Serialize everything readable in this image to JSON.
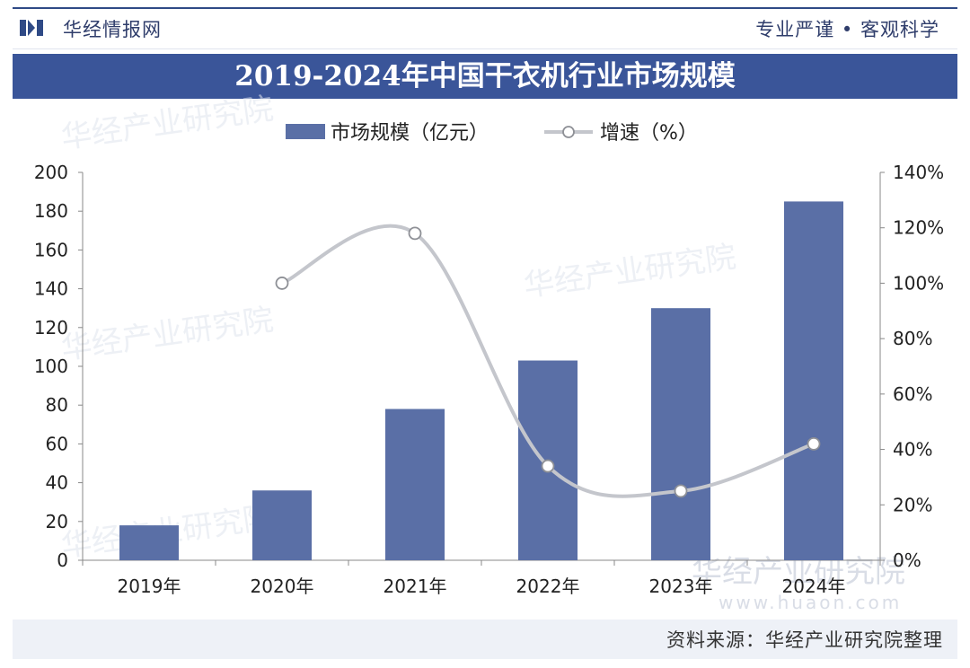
{
  "header": {
    "logo_text": "华经情报网",
    "slogan": "专业严谨 • 客观科学"
  },
  "footer": {
    "source": "资料来源：华经产业研究院整理"
  },
  "watermark": {
    "text": "华经产业研究院",
    "url": "www.huaon.com"
  },
  "colors": {
    "brand": "#3a5599",
    "bar": "#5a6fa6",
    "line": "#c4c6cc",
    "marker_stroke": "#8e9096"
  },
  "chart_data": {
    "type": "bar",
    "title": "2019-2024年中国干衣机行业市场规模",
    "categories": [
      "2019年",
      "2020年",
      "2021年",
      "2022年",
      "2023年",
      "2024年"
    ],
    "series": [
      {
        "name": "市场规模（亿元）",
        "type": "bar",
        "axis": "left",
        "values": [
          18,
          36,
          78,
          103,
          130,
          185
        ]
      },
      {
        "name": "增速（%）",
        "type": "line",
        "axis": "right",
        "values": [
          null,
          100,
          118,
          34,
          25,
          42
        ]
      }
    ],
    "y_left": {
      "min": 0,
      "max": 200,
      "step": 20,
      "ticks": [
        "0",
        "20",
        "40",
        "60",
        "80",
        "100",
        "120",
        "140",
        "160",
        "180",
        "200"
      ]
    },
    "y_right": {
      "min": 0,
      "max": 140,
      "step": 20,
      "ticks": [
        "0%",
        "20%",
        "40%",
        "60%",
        "80%",
        "100%",
        "120%",
        "140%"
      ]
    },
    "legend_position": "top",
    "grid": false
  }
}
